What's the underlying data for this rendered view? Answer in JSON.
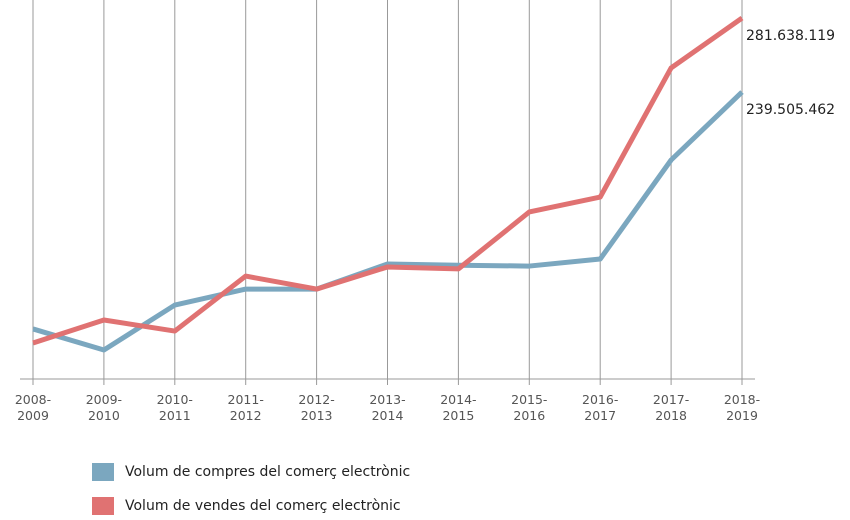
{
  "chart_data": {
    "type": "line",
    "categories": [
      "2008-2009",
      "2009-2010",
      "2010-2011",
      "2011-2012",
      "2012-2013",
      "2013-2014",
      "2014-2015",
      "2015-2016",
      "2016-2017",
      "2017-2018",
      "2018-2019"
    ],
    "series": [
      {
        "name": "Volum de compres del comerç electrònic",
        "color": "#7ba7bf",
        "values": [
          104600000,
          92600000,
          118200000,
          127300000,
          127300000,
          141600000,
          140900000,
          140400000,
          144400000,
          200800000,
          239505462
        ],
        "value_labels": [
          null,
          null,
          null,
          null,
          null,
          null,
          null,
          null,
          null,
          null,
          "239.505.462"
        ]
      },
      {
        "name": "Volum de vendes del comerç electrònic",
        "color": "#e07272",
        "values": [
          96600000,
          109700000,
          103400000,
          134700000,
          127300000,
          139900000,
          138800000,
          171200000,
          179700000,
          253200000,
          281638119
        ],
        "value_labels": [
          null,
          null,
          null,
          null,
          null,
          null,
          null,
          null,
          null,
          null,
          "281.638.119"
        ]
      }
    ],
    "ylim": [
      76100000,
      291900000
    ],
    "grid": true
  }
}
